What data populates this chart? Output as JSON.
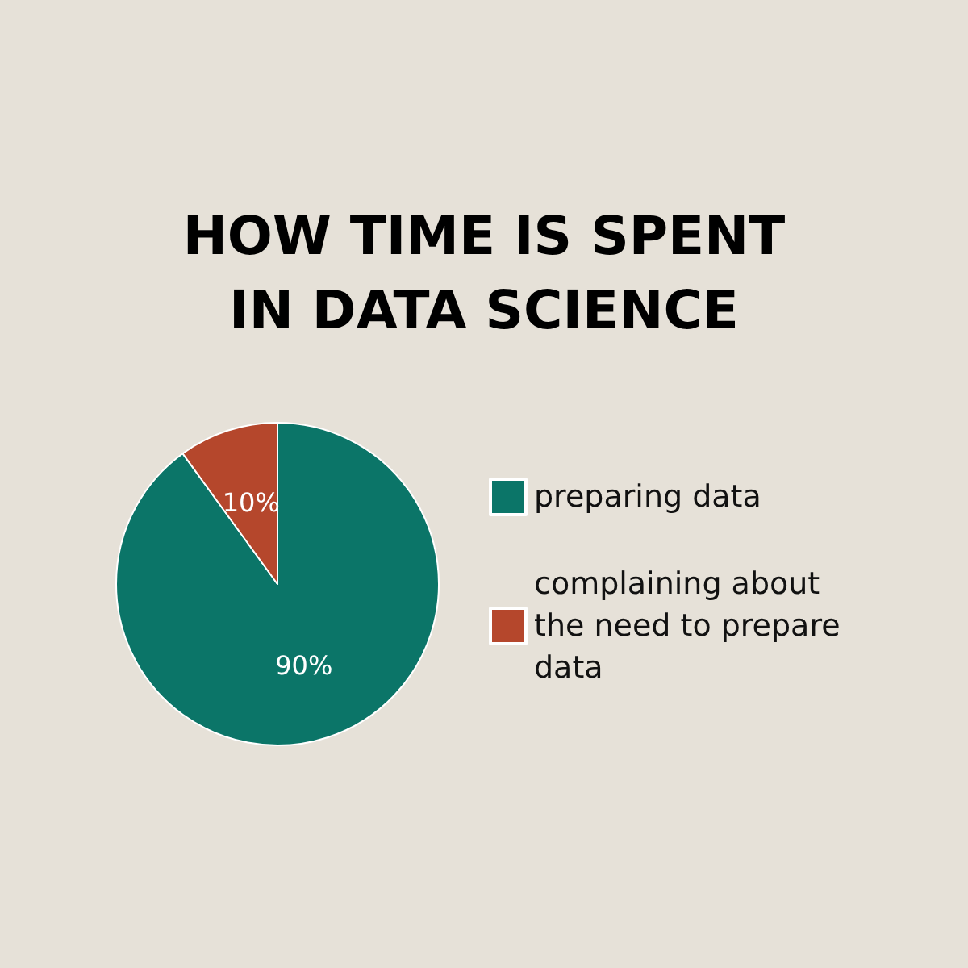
{
  "chart_data": {
    "type": "pie",
    "title": "HOW TIME IS SPENT\nIN DATA SCIENCE",
    "categories": [
      "preparing data",
      "complaining about the need to prepare data"
    ],
    "values": [
      90,
      10
    ],
    "colors": [
      "#0b7568",
      "#b5472c"
    ],
    "value_labels": [
      "90%",
      "10%"
    ],
    "legend": "right"
  }
}
